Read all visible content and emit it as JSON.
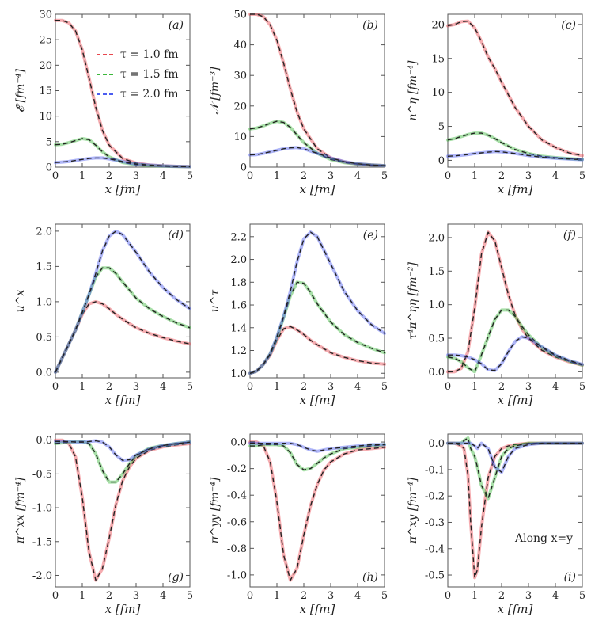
{
  "chart_data": [
    {
      "type": "line",
      "id": "a",
      "panel_label": "(a)",
      "ylabel": "𝓔 [fm⁻⁴]",
      "xlabel": "x [fm]",
      "xlim": [
        0,
        5
      ],
      "ylim": [
        0,
        30
      ],
      "xticks": [
        "0",
        "1",
        "2",
        "3",
        "4",
        "5"
      ],
      "yticks": [
        "0",
        "5",
        "10",
        "15",
        "20",
        "25",
        "30"
      ],
      "x": [
        0,
        0.25,
        0.5,
        0.75,
        1,
        1.25,
        1.5,
        1.75,
        2,
        2.5,
        3,
        3.5,
        4,
        4.5,
        5
      ],
      "series": [
        {
          "name": "τ = 1.0 fm",
          "color": "#e8474f",
          "values": [
            28.8,
            28.8,
            28.3,
            26.7,
            23.0,
            17.5,
            11.8,
            7.2,
            4.3,
            1.7,
            0.8,
            0.4,
            0.25,
            0.15,
            0.1
          ]
        },
        {
          "name": "τ = 1.5 fm",
          "color": "#3cb83c",
          "values": [
            4.4,
            4.5,
            4.8,
            5.2,
            5.6,
            5.4,
            4.3,
            3.0,
            2.0,
            0.9,
            0.5,
            0.3,
            0.2,
            0.12,
            0.08
          ]
        },
        {
          "name": "τ = 2.0 fm",
          "color": "#4b5cf0",
          "values": [
            0.9,
            1.0,
            1.1,
            1.3,
            1.5,
            1.7,
            1.8,
            1.8,
            1.6,
            1.1,
            0.6,
            0.4,
            0.25,
            0.15,
            0.1
          ]
        }
      ]
    },
    {
      "type": "line",
      "id": "b",
      "panel_label": "(b)",
      "ylabel": "𝒩 [fm⁻³]",
      "xlabel": "x [fm]",
      "xlim": [
        0,
        5
      ],
      "ylim": [
        0,
        50
      ],
      "xticks": [
        "0",
        "1",
        "2",
        "3",
        "4",
        "5"
      ],
      "yticks": [
        "0",
        "10",
        "20",
        "30",
        "40",
        "50"
      ],
      "x": [
        0,
        0.25,
        0.5,
        0.75,
        1,
        1.25,
        1.5,
        1.75,
        2,
        2.5,
        3,
        3.5,
        4,
        4.5,
        5
      ],
      "series": [
        {
          "name": "τ = 1.0 fm",
          "color": "#e8474f",
          "values": [
            50,
            50,
            49.2,
            46.5,
            41.5,
            34.0,
            25.5,
            18.0,
            12.5,
            6.0,
            3.0,
            1.7,
            1.0,
            0.7,
            0.5
          ]
        },
        {
          "name": "τ = 1.5 fm",
          "color": "#3cb83c",
          "values": [
            12.5,
            12.8,
            13.5,
            14.3,
            15.0,
            14.6,
            13.0,
            10.5,
            8.0,
            4.5,
            2.5,
            1.5,
            1.0,
            0.7,
            0.5
          ]
        },
        {
          "name": "τ = 2.0 fm",
          "color": "#4b5cf0",
          "values": [
            4.0,
            4.1,
            4.5,
            5.0,
            5.5,
            6.0,
            6.3,
            6.4,
            6.0,
            4.5,
            3.0,
            1.8,
            1.1,
            0.7,
            0.5
          ]
        }
      ]
    },
    {
      "type": "line",
      "id": "c",
      "panel_label": "(c)",
      "ylabel": "n^η [fm⁻⁴]",
      "xlabel": "x [fm]",
      "xlim": [
        0,
        5
      ],
      "ylim": [
        -1,
        21.5
      ],
      "xticks": [
        "0",
        "1",
        "2",
        "3",
        "4",
        "5"
      ],
      "yticks": [
        "0",
        "5",
        "10",
        "15",
        "20"
      ],
      "x": [
        0,
        0.25,
        0.5,
        0.75,
        1,
        1.25,
        1.5,
        1.75,
        2,
        2.5,
        3,
        3.5,
        4,
        4.5,
        5
      ],
      "series": [
        {
          "name": "τ = 1.0 fm",
          "color": "#e8474f",
          "values": [
            19.8,
            20.0,
            20.4,
            20.5,
            19.5,
            17.5,
            15.2,
            13.5,
            11.5,
            7.8,
            5.0,
            3.0,
            1.9,
            1.1,
            0.7
          ]
        },
        {
          "name": "τ = 1.5 fm",
          "color": "#3cb83c",
          "values": [
            3.0,
            3.2,
            3.5,
            3.8,
            4.0,
            4.0,
            3.7,
            3.2,
            2.6,
            1.6,
            1.0,
            0.6,
            0.4,
            0.25,
            0.15
          ]
        },
        {
          "name": "τ = 2.0 fm",
          "color": "#4b5cf0",
          "values": [
            0.6,
            0.65,
            0.75,
            0.85,
            1.0,
            1.1,
            1.2,
            1.3,
            1.25,
            1.0,
            0.7,
            0.45,
            0.3,
            0.2,
            0.1
          ]
        }
      ]
    },
    {
      "type": "line",
      "id": "d",
      "panel_label": "(d)",
      "ylabel": "u^x",
      "xlabel": "x [fm]",
      "xlim": [
        0,
        5
      ],
      "ylim": [
        -0.08,
        2.1
      ],
      "xticks": [
        "0",
        "1",
        "2",
        "3",
        "4",
        "5"
      ],
      "yticks": [
        "0.0",
        "0.5",
        "1.0",
        "1.5",
        "2.0"
      ],
      "x": [
        0,
        0.25,
        0.5,
        0.75,
        1,
        1.25,
        1.5,
        1.75,
        2,
        2.25,
        2.5,
        3,
        3.5,
        4,
        4.5,
        5
      ],
      "series": [
        {
          "name": "τ = 1.0 fm",
          "color": "#e8474f",
          "values": [
            0,
            0.2,
            0.4,
            0.6,
            0.82,
            0.97,
            1.0,
            0.97,
            0.9,
            0.82,
            0.75,
            0.63,
            0.55,
            0.49,
            0.44,
            0.4
          ]
        },
        {
          "name": "τ = 1.5 fm",
          "color": "#3cb83c",
          "values": [
            0,
            0.2,
            0.4,
            0.6,
            0.85,
            1.1,
            1.35,
            1.48,
            1.48,
            1.4,
            1.28,
            1.05,
            0.9,
            0.79,
            0.7,
            0.63
          ]
        },
        {
          "name": "τ = 2.0 fm",
          "color": "#4b5cf0",
          "values": [
            0,
            0.2,
            0.4,
            0.6,
            0.85,
            1.1,
            1.4,
            1.72,
            1.93,
            2.0,
            1.95,
            1.7,
            1.42,
            1.2,
            1.03,
            0.9
          ]
        }
      ]
    },
    {
      "type": "line",
      "id": "e",
      "panel_label": "(e)",
      "ylabel": "u^τ",
      "xlabel": "x [fm]",
      "xlim": [
        0,
        5
      ],
      "ylim": [
        0.96,
        2.31
      ],
      "xticks": [
        "0",
        "1",
        "2",
        "3",
        "4",
        "5"
      ],
      "yticks": [
        "1.0",
        "1.2",
        "1.4",
        "1.6",
        "1.8",
        "2.0",
        "2.2"
      ],
      "x": [
        0,
        0.25,
        0.5,
        0.75,
        1,
        1.25,
        1.5,
        1.75,
        2,
        2.25,
        2.5,
        3,
        3.5,
        4,
        4.5,
        5
      ],
      "series": [
        {
          "name": "τ = 1.0 fm",
          "color": "#e8474f",
          "values": [
            1.0,
            1.02,
            1.08,
            1.16,
            1.29,
            1.39,
            1.41,
            1.38,
            1.34,
            1.29,
            1.25,
            1.18,
            1.14,
            1.11,
            1.09,
            1.08
          ]
        },
        {
          "name": "τ = 1.5 fm",
          "color": "#3cb83c",
          "values": [
            1.0,
            1.02,
            1.08,
            1.17,
            1.31,
            1.49,
            1.68,
            1.8,
            1.79,
            1.71,
            1.61,
            1.45,
            1.34,
            1.27,
            1.22,
            1.18
          ]
        },
        {
          "name": "τ = 2.0 fm",
          "color": "#4b5cf0",
          "values": [
            1.0,
            1.02,
            1.08,
            1.17,
            1.32,
            1.5,
            1.72,
            1.98,
            2.18,
            2.24,
            2.2,
            1.96,
            1.72,
            1.55,
            1.43,
            1.35
          ]
        }
      ]
    },
    {
      "type": "line",
      "id": "f",
      "panel_label": "(f)",
      "ylabel": "τ⁴π^ηη [fm⁻²]",
      "xlabel": "x [fm]",
      "xlim": [
        0,
        5
      ],
      "ylim": [
        -0.09,
        2.2
      ],
      "xticks": [
        "0",
        "1",
        "2",
        "3",
        "4",
        "5"
      ],
      "yticks": [
        "0.0",
        "0.5",
        "1.0",
        "1.5",
        "2.0"
      ],
      "x": [
        0,
        0.25,
        0.5,
        0.75,
        1,
        1.25,
        1.5,
        1.75,
        2,
        2.25,
        2.5,
        2.75,
        3,
        3.5,
        4,
        4.5,
        5
      ],
      "series": [
        {
          "name": "τ = 1.0 fm",
          "color": "#e8474f",
          "values": [
            0,
            0,
            0.05,
            0.3,
            0.95,
            1.75,
            2.08,
            1.95,
            1.55,
            1.15,
            0.85,
            0.64,
            0.5,
            0.32,
            0.22,
            0.15,
            0.1
          ]
        },
        {
          "name": "τ = 1.5 fm",
          "color": "#3cb83c",
          "values": [
            0.22,
            0.2,
            0.15,
            0.06,
            0.0,
            0.25,
            0.52,
            0.78,
            0.92,
            0.92,
            0.83,
            0.68,
            0.55,
            0.36,
            0.24,
            0.16,
            0.1
          ]
        },
        {
          "name": "τ = 2.0 fm",
          "color": "#4b5cf0",
          "values": [
            0.25,
            0.25,
            0.24,
            0.22,
            0.18,
            0.12,
            0.03,
            0.02,
            0.12,
            0.3,
            0.45,
            0.52,
            0.5,
            0.37,
            0.25,
            0.17,
            0.11
          ]
        }
      ]
    },
    {
      "type": "line",
      "id": "g",
      "panel_label": "(g)",
      "ylabel": "π^xx [fm⁻⁴]",
      "xlabel": "x [fm]",
      "xlim": [
        0,
        5
      ],
      "ylim": [
        -2.17,
        0.09
      ],
      "xticks": [
        "0",
        "1",
        "2",
        "3",
        "4",
        "5"
      ],
      "yticks": [
        "0.0",
        "-0.5",
        "-1.0",
        "-1.5",
        "-2.0"
      ],
      "x": [
        0,
        0.25,
        0.5,
        0.75,
        1,
        1.25,
        1.5,
        1.75,
        2,
        2.25,
        2.5,
        2.75,
        3,
        3.5,
        4,
        4.5,
        5
      ],
      "series": [
        {
          "name": "τ = 1.0 fm",
          "color": "#e8474f",
          "values": [
            0,
            0,
            -0.05,
            -0.25,
            -0.85,
            -1.65,
            -2.07,
            -1.9,
            -1.45,
            -0.95,
            -0.6,
            -0.4,
            -0.27,
            -0.15,
            -0.1,
            -0.07,
            -0.05
          ]
        },
        {
          "name": "τ = 1.5 fm",
          "color": "#3cb83c",
          "values": [
            -0.05,
            -0.04,
            -0.03,
            -0.02,
            -0.02,
            -0.05,
            -0.2,
            -0.45,
            -0.62,
            -0.62,
            -0.5,
            -0.35,
            -0.23,
            -0.12,
            -0.08,
            -0.05,
            -0.03
          ]
        },
        {
          "name": "τ = 2.0 fm",
          "color": "#4b5cf0",
          "values": [
            -0.02,
            -0.02,
            -0.02,
            -0.03,
            -0.03,
            -0.02,
            -0.01,
            -0.03,
            -0.1,
            -0.22,
            -0.3,
            -0.29,
            -0.22,
            -0.13,
            -0.08,
            -0.05,
            -0.03
          ]
        }
      ]
    },
    {
      "type": "line",
      "id": "h",
      "panel_label": "(h)",
      "ylabel": "π^yy [fm⁻⁴]",
      "xlabel": "x [fm]",
      "xlim": [
        0,
        5
      ],
      "ylim": [
        -1.09,
        0.06
      ],
      "xticks": [
        "0",
        "1",
        "2",
        "3",
        "4",
        "5"
      ],
      "yticks": [
        "0.0",
        "-0.2",
        "-0.4",
        "-0.6",
        "-0.8",
        "-1.0"
      ],
      "x": [
        0,
        0.25,
        0.5,
        0.75,
        1,
        1.25,
        1.5,
        1.75,
        2,
        2.25,
        2.5,
        2.75,
        3,
        3.5,
        4,
        4.5,
        5
      ],
      "series": [
        {
          "name": "τ = 1.0 fm",
          "color": "#e8474f",
          "values": [
            0,
            0,
            -0.03,
            -0.15,
            -0.45,
            -0.85,
            -1.04,
            -0.95,
            -0.7,
            -0.48,
            -0.32,
            -0.21,
            -0.15,
            -0.09,
            -0.06,
            -0.05,
            -0.04
          ]
        },
        {
          "name": "τ = 1.5 fm",
          "color": "#3cb83c",
          "values": [
            -0.03,
            -0.03,
            -0.02,
            -0.02,
            -0.02,
            -0.03,
            -0.08,
            -0.17,
            -0.21,
            -0.2,
            -0.16,
            -0.12,
            -0.09,
            -0.05,
            -0.04,
            -0.03,
            -0.02
          ]
        },
        {
          "name": "τ = 2.0 fm",
          "color": "#4b5cf0",
          "values": [
            -0.01,
            -0.01,
            -0.01,
            -0.01,
            -0.01,
            -0.01,
            -0.01,
            -0.02,
            -0.04,
            -0.06,
            -0.07,
            -0.06,
            -0.05,
            -0.04,
            -0.03,
            -0.02,
            -0.02
          ]
        }
      ]
    },
    {
      "type": "line",
      "id": "i",
      "panel_label": "(i)",
      "ylabel": "π^xy [fm⁻⁴]",
      "xlabel": "x [fm]",
      "annotation": "Along x=y",
      "xlim": [
        0,
        5
      ],
      "ylim": [
        -0.545,
        0.035
      ],
      "xticks": [
        "0",
        "1",
        "2",
        "3",
        "4",
        "5"
      ],
      "yticks": [
        "0.0",
        "-0.1",
        "-0.2",
        "-0.3",
        "-0.4",
        "-0.5"
      ],
      "x": [
        0,
        0.25,
        0.5,
        0.6,
        0.75,
        0.85,
        1,
        1.1,
        1.25,
        1.5,
        1.75,
        2,
        2.25,
        2.5,
        3,
        3.5,
        4,
        4.5,
        5
      ],
      "series": [
        {
          "name": "τ = 1.0 fm",
          "color": "#e8474f",
          "values": [
            0,
            0,
            -0.01,
            -0.02,
            -0.12,
            -0.3,
            -0.51,
            -0.48,
            -0.32,
            -0.13,
            -0.05,
            -0.02,
            -0.01,
            -0.005,
            0,
            0,
            0,
            0,
            0
          ]
        },
        {
          "name": "τ = 1.5 fm",
          "color": "#3cb83c",
          "values": [
            0,
            0,
            0,
            0.01,
            0.02,
            -0.02,
            -0.05,
            -0.09,
            -0.16,
            -0.21,
            -0.13,
            -0.05,
            -0.02,
            -0.01,
            0,
            0,
            0,
            0,
            0
          ]
        },
        {
          "name": "τ = 2.0 fm",
          "color": "#4b5cf0",
          "values": [
            0,
            0,
            0,
            0,
            0,
            0,
            -0.01,
            -0.02,
            0,
            -0.02,
            -0.09,
            -0.11,
            -0.05,
            -0.02,
            -0.005,
            0,
            0,
            0,
            0
          ]
        }
      ]
    }
  ],
  "legend": {
    "items": [
      {
        "label": "τ = 1.0 fm",
        "color": "#e8474f"
      },
      {
        "label": "τ = 1.5 fm",
        "color": "#3cb83c"
      },
      {
        "label": "τ = 2.0 fm",
        "color": "#4b5cf0"
      }
    ]
  }
}
